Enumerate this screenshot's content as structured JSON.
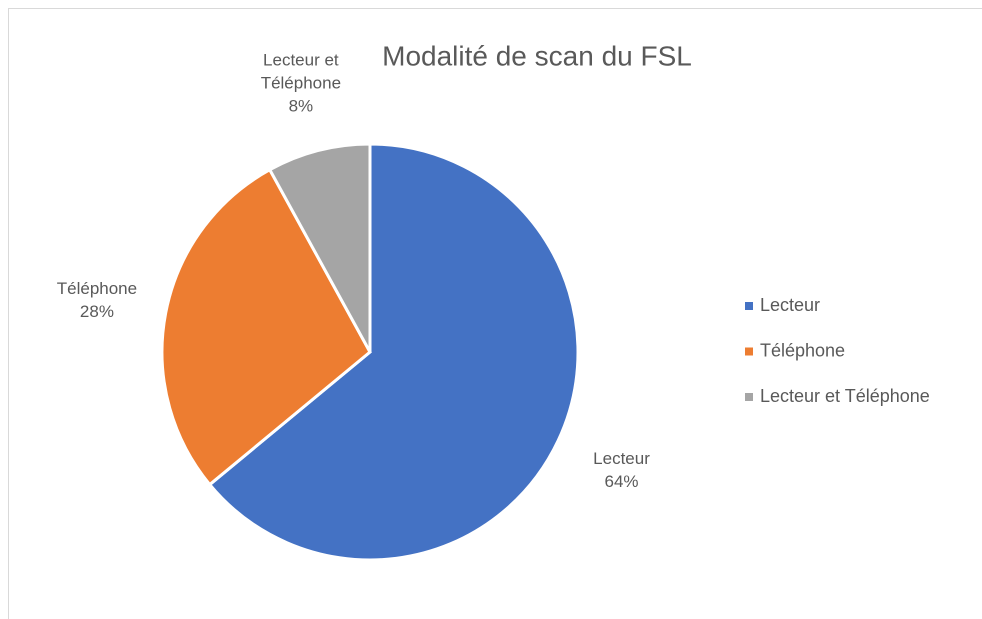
{
  "chart_data": {
    "type": "pie",
    "title": "Modalité de scan du FSL",
    "categories": [
      "Lecteur",
      "Téléphone",
      "Lecteur et Téléphone"
    ],
    "values": [
      64,
      28,
      8
    ],
    "value_labels": [
      "64%",
      "28%",
      "8%"
    ],
    "colors": [
      "#4472c4",
      "#ed7d31",
      "#a5a5a5"
    ],
    "legend": "right"
  }
}
